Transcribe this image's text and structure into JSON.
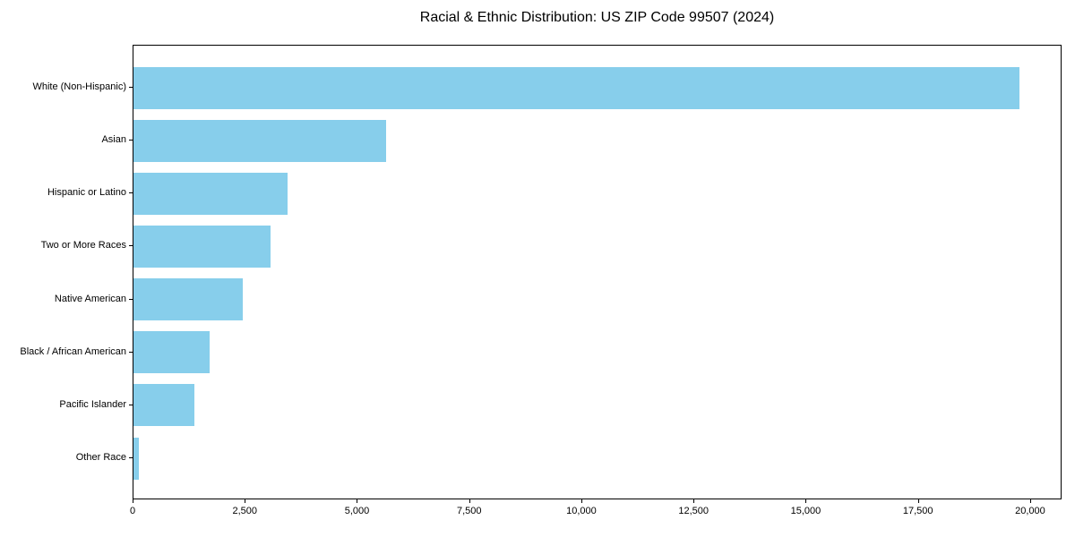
{
  "chart_data": {
    "type": "bar",
    "orientation": "horizontal",
    "title": "Racial & Ethnic Distribution: US ZIP Code 99507 (2024)",
    "xlabel": "",
    "ylabel": "",
    "categories": [
      "White (Non-Hispanic)",
      "Asian",
      "Hispanic or Latino",
      "Two or More Races",
      "Native American",
      "Black / African American",
      "Pacific Islander",
      "Other Race"
    ],
    "values": [
      19750,
      5630,
      3430,
      3050,
      2440,
      1700,
      1360,
      120
    ],
    "xlim": [
      0,
      20700
    ],
    "xticks": [
      0,
      2500,
      5000,
      7500,
      10000,
      12500,
      15000,
      17500,
      20000
    ],
    "xtick_labels": [
      "0",
      "2,500",
      "5,000",
      "7,500",
      "10,000",
      "12,500",
      "15,000",
      "17,500",
      "20,000"
    ],
    "bar_color": "#87CEEB",
    "grid": false,
    "legend": null,
    "background_color": "#ffffff",
    "spine_color": "#000000"
  }
}
